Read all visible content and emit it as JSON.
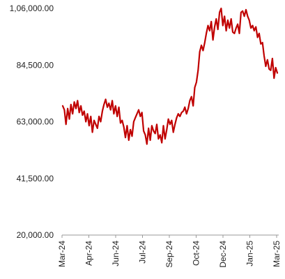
{
  "chart_data": {
    "type": "line",
    "title": "",
    "xlabel": "",
    "ylabel": "",
    "ylim": [
      20000,
      106000
    ],
    "yticks": [
      20000,
      41500,
      63000,
      84500,
      106000
    ],
    "ytick_labels": [
      "20,000.00",
      "41,500.00",
      "63,000.00",
      "84,500.00",
      "1,06,000.00"
    ],
    "xtick_labels": [
      "Mar-24",
      "Apr-24",
      "Jun-24",
      "Jul-24",
      "Sep-24",
      "Oct-24",
      "Dec-24",
      "Jan-25",
      "Mar-25"
    ],
    "grid": false,
    "legend": "none",
    "series": [
      {
        "color": "#c00000",
        "values": [
          69000,
          67500,
          62000,
          68000,
          64000,
          69500,
          66000,
          70500,
          68000,
          71000,
          66500,
          69000,
          65500,
          67000,
          63000,
          66000,
          61500,
          65000,
          59000,
          63500,
          62000,
          60500,
          65000,
          63000,
          67000,
          69500,
          71500,
          68500,
          70000,
          67500,
          71000,
          66000,
          69000,
          65000,
          68500,
          62500,
          63500,
          61000,
          57000,
          61500,
          56000,
          60000,
          57500,
          63000,
          64500,
          66000,
          67500,
          65000,
          66500,
          59500,
          58000,
          54500,
          60500,
          56000,
          61500,
          59500,
          58500,
          62000,
          56500,
          58000,
          55000,
          61500,
          56500,
          60000,
          64000,
          62000,
          63500,
          59000,
          62000,
          64500,
          66000,
          65000,
          66500,
          67000,
          68500,
          66000,
          68000,
          71000,
          72500,
          69000,
          76000,
          78000,
          82500,
          89500,
          92000,
          90000,
          93000,
          96500,
          99500,
          97500,
          101000,
          94000,
          99000,
          102000,
          98000,
          104500,
          106000,
          99500,
          103000,
          97500,
          101500,
          98500,
          102000,
          97000,
          96500,
          98500,
          100000,
          96500,
          104500,
          105000,
          103000,
          105500,
          103000,
          101500,
          98500,
          99500,
          97500,
          99000,
          95000,
          96500,
          92500,
          93000,
          88000,
          84000,
          86500,
          83000,
          82500,
          87000,
          79500,
          83500,
          81500
        ]
      }
    ]
  }
}
